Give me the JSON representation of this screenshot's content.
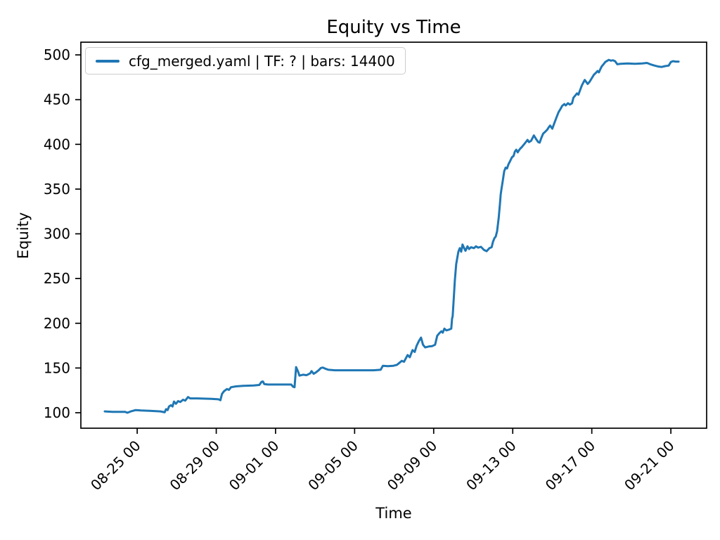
{
  "chart_data": {
    "type": "line",
    "title": "Equity vs Time",
    "xlabel": "Time",
    "ylabel": "Equity",
    "grid": false,
    "legend_position": "upper left",
    "line_color": "#1f77b4",
    "background_color": "#ffffff",
    "axis_color": "#000000",
    "x_axis_note": "x values are fractional days; t=3 corresponds to tick 08-25 00",
    "xlim": [
      0.15,
      31.81
    ],
    "ylim": [
      82.7,
      514.2
    ],
    "y_ticks": [
      100,
      150,
      200,
      250,
      300,
      350,
      400,
      450,
      500
    ],
    "x_ticks": [
      {
        "t": 3,
        "label": "08-25 00"
      },
      {
        "t": 7,
        "label": "08-29 00"
      },
      {
        "t": 10,
        "label": "09-01 00"
      },
      {
        "t": 14,
        "label": "09-05 00"
      },
      {
        "t": 18,
        "label": "09-09 00"
      },
      {
        "t": 22,
        "label": "09-13 00"
      },
      {
        "t": 26,
        "label": "09-17 00"
      },
      {
        "t": 30,
        "label": "09-21 00"
      }
    ],
    "series": [
      {
        "name": "cfg_merged.yaml | TF: ? | bars: 14400",
        "color": "#1f77b4",
        "points": [
          [
            1.36,
            101.5
          ],
          [
            1.75,
            101
          ],
          [
            2.39,
            101
          ],
          [
            2.5,
            100
          ],
          [
            2.68,
            101.5
          ],
          [
            2.93,
            103
          ],
          [
            3.18,
            102.5
          ],
          [
            3.71,
            102
          ],
          [
            4.18,
            101.5
          ],
          [
            4.39,
            100.5
          ],
          [
            4.46,
            104
          ],
          [
            4.54,
            103
          ],
          [
            4.61,
            107
          ],
          [
            4.71,
            108.5
          ],
          [
            4.79,
            107
          ],
          [
            4.86,
            112.5
          ],
          [
            4.96,
            110
          ],
          [
            5.07,
            113
          ],
          [
            5.18,
            112
          ],
          [
            5.32,
            114.5
          ],
          [
            5.43,
            113.5
          ],
          [
            5.57,
            117.5
          ],
          [
            5.68,
            116
          ],
          [
            6.04,
            116
          ],
          [
            6.75,
            115.5
          ],
          [
            7.11,
            115
          ],
          [
            7.21,
            114
          ],
          [
            7.29,
            121
          ],
          [
            7.39,
            124
          ],
          [
            7.54,
            126.5
          ],
          [
            7.64,
            125.5
          ],
          [
            7.75,
            128.5
          ],
          [
            8.0,
            129.5
          ],
          [
            8.36,
            130
          ],
          [
            8.89,
            130.5
          ],
          [
            9.18,
            131
          ],
          [
            9.29,
            134.5
          ],
          [
            9.36,
            135
          ],
          [
            9.43,
            132
          ],
          [
            9.61,
            131.5
          ],
          [
            10.32,
            131.5
          ],
          [
            10.79,
            131.5
          ],
          [
            10.89,
            129
          ],
          [
            10.96,
            128.5
          ],
          [
            11.04,
            151
          ],
          [
            11.14,
            146
          ],
          [
            11.21,
            141.5
          ],
          [
            11.39,
            142.5
          ],
          [
            11.57,
            142
          ],
          [
            11.75,
            144
          ],
          [
            11.82,
            146.5
          ],
          [
            11.93,
            143.5
          ],
          [
            12.04,
            145
          ],
          [
            12.18,
            147.5
          ],
          [
            12.29,
            150
          ],
          [
            12.39,
            150.5
          ],
          [
            12.54,
            149
          ],
          [
            12.68,
            148
          ],
          [
            13.0,
            147.5
          ],
          [
            13.54,
            147.5
          ],
          [
            14.25,
            147.5
          ],
          [
            14.96,
            147.5
          ],
          [
            15.32,
            148
          ],
          [
            15.43,
            152.5
          ],
          [
            15.68,
            152
          ],
          [
            15.96,
            152.5
          ],
          [
            16.14,
            153.5
          ],
          [
            16.39,
            158
          ],
          [
            16.5,
            157
          ],
          [
            16.68,
            164.5
          ],
          [
            16.79,
            162
          ],
          [
            16.93,
            170
          ],
          [
            17.04,
            168
          ],
          [
            17.14,
            175
          ],
          [
            17.25,
            180
          ],
          [
            17.36,
            184
          ],
          [
            17.46,
            176
          ],
          [
            17.57,
            173
          ],
          [
            17.75,
            174
          ],
          [
            17.93,
            174.5
          ],
          [
            18.07,
            176
          ],
          [
            18.18,
            186
          ],
          [
            18.29,
            189
          ],
          [
            18.39,
            191
          ],
          [
            18.46,
            189.5
          ],
          [
            18.54,
            194
          ],
          [
            18.64,
            192
          ],
          [
            18.79,
            193
          ],
          [
            18.89,
            194
          ],
          [
            18.93,
            205
          ],
          [
            18.96,
            208
          ],
          [
            19.0,
            222
          ],
          [
            19.07,
            248
          ],
          [
            19.14,
            266
          ],
          [
            19.21,
            275
          ],
          [
            19.25,
            280
          ],
          [
            19.32,
            284
          ],
          [
            19.39,
            280
          ],
          [
            19.46,
            288
          ],
          [
            19.54,
            284
          ],
          [
            19.61,
            281
          ],
          [
            19.71,
            286
          ],
          [
            19.79,
            283
          ],
          [
            19.89,
            285
          ],
          [
            20.04,
            284
          ],
          [
            20.14,
            286
          ],
          [
            20.25,
            284.5
          ],
          [
            20.39,
            285.5
          ],
          [
            20.54,
            282
          ],
          [
            20.68,
            280.5
          ],
          [
            20.82,
            284
          ],
          [
            20.93,
            285
          ],
          [
            21.0,
            291
          ],
          [
            21.07,
            295
          ],
          [
            21.14,
            297
          ],
          [
            21.21,
            303
          ],
          [
            21.29,
            318
          ],
          [
            21.36,
            335
          ],
          [
            21.39,
            344
          ],
          [
            21.43,
            350
          ],
          [
            21.5,
            360
          ],
          [
            21.57,
            370
          ],
          [
            21.64,
            374
          ],
          [
            21.71,
            373
          ],
          [
            21.79,
            378
          ],
          [
            21.86,
            381
          ],
          [
            21.96,
            385.5
          ],
          [
            22.04,
            387
          ],
          [
            22.11,
            392
          ],
          [
            22.18,
            394
          ],
          [
            22.25,
            391
          ],
          [
            22.32,
            393.5
          ],
          [
            22.39,
            395.5
          ],
          [
            22.46,
            397
          ],
          [
            22.57,
            400
          ],
          [
            22.68,
            403
          ],
          [
            22.75,
            405
          ],
          [
            22.82,
            402.5
          ],
          [
            22.93,
            404
          ],
          [
            23.0,
            407
          ],
          [
            23.07,
            410
          ],
          [
            23.18,
            406
          ],
          [
            23.29,
            402.5
          ],
          [
            23.36,
            402
          ],
          [
            23.46,
            408
          ],
          [
            23.54,
            412
          ],
          [
            23.64,
            414
          ],
          [
            23.75,
            416.5
          ],
          [
            23.82,
            419
          ],
          [
            23.89,
            421
          ],
          [
            24.0,
            417.5
          ],
          [
            24.11,
            424
          ],
          [
            24.21,
            430
          ],
          [
            24.32,
            436
          ],
          [
            24.43,
            440
          ],
          [
            24.5,
            443
          ],
          [
            24.61,
            445
          ],
          [
            24.68,
            443.5
          ],
          [
            24.79,
            446
          ],
          [
            24.89,
            444.5
          ],
          [
            25.0,
            446
          ],
          [
            25.07,
            452
          ],
          [
            25.18,
            455
          ],
          [
            25.25,
            457
          ],
          [
            25.32,
            455.5
          ],
          [
            25.43,
            462
          ],
          [
            25.5,
            466
          ],
          [
            25.57,
            469
          ],
          [
            25.64,
            472
          ],
          [
            25.71,
            470
          ],
          [
            25.79,
            467.5
          ],
          [
            25.89,
            470
          ],
          [
            26.0,
            474
          ],
          [
            26.11,
            478
          ],
          [
            26.21,
            480
          ],
          [
            26.29,
            482
          ],
          [
            26.36,
            480.5
          ],
          [
            26.43,
            484
          ],
          [
            26.5,
            487
          ],
          [
            26.61,
            490
          ],
          [
            26.68,
            492
          ],
          [
            26.79,
            493.5
          ],
          [
            26.86,
            494.5
          ],
          [
            26.96,
            493.5
          ],
          [
            27.07,
            494
          ],
          [
            27.18,
            493
          ],
          [
            27.29,
            489.5
          ],
          [
            27.46,
            490
          ],
          [
            27.82,
            490.5
          ],
          [
            28.18,
            490
          ],
          [
            28.54,
            490.5
          ],
          [
            28.79,
            491
          ],
          [
            28.96,
            489.5
          ],
          [
            29.18,
            488
          ],
          [
            29.36,
            487
          ],
          [
            29.54,
            486.5
          ],
          [
            29.71,
            487.5
          ],
          [
            29.89,
            488
          ],
          [
            30.0,
            492
          ],
          [
            30.11,
            493
          ],
          [
            30.25,
            492.5
          ],
          [
            30.39,
            492.5
          ]
        ]
      }
    ]
  }
}
